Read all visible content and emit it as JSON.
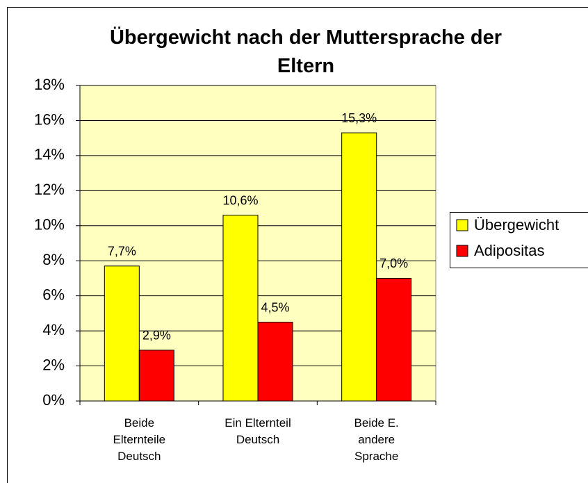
{
  "chart_data": {
    "type": "bar",
    "title": "Übergewicht nach der Muttersprache der Eltern",
    "categories": [
      "Beide\nElternteile\nDeutsch",
      "Ein Elternteil\nDeutsch",
      "Beide E.\nandere\nSprache"
    ],
    "series": [
      {
        "name": "Übergewicht",
        "color": "#ffff00",
        "values": [
          7.7,
          10.6,
          15.3
        ],
        "value_labels": [
          "7,7%",
          "10,6%",
          "15,3%"
        ]
      },
      {
        "name": "Adipositas",
        "color": "#ff0000",
        "values": [
          2.9,
          4.5,
          7.0
        ],
        "value_labels": [
          "2,9%",
          "4,5%",
          "7,0%"
        ]
      }
    ],
    "ylim": [
      0,
      18
    ],
    "yticks": [
      {
        "value": 0,
        "label": "0%"
      },
      {
        "value": 2,
        "label": "2%"
      },
      {
        "value": 4,
        "label": "4%"
      },
      {
        "value": 6,
        "label": "6%"
      },
      {
        "value": 8,
        "label": "8%"
      },
      {
        "value": 10,
        "label": "10%"
      },
      {
        "value": 12,
        "label": "12%"
      },
      {
        "value": 14,
        "label": "14%"
      },
      {
        "value": 16,
        "label": "16%"
      },
      {
        "value": 18,
        "label": "18%"
      }
    ],
    "grid": true,
    "legend": "right",
    "plot_background": "#ffffc0"
  }
}
